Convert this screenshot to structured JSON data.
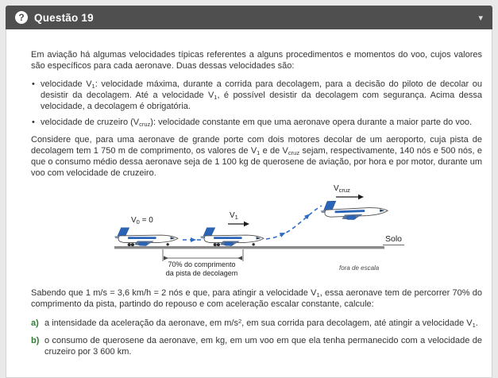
{
  "header": {
    "title": "Questão 19",
    "help_icon_glyph": "?",
    "collapse_icon_glyph": "▾"
  },
  "colors": {
    "header_bg": "#4f4f4f",
    "item_letter_green": "#2e7d32",
    "trajectory_blue": "#2f6bc4",
    "ground_gray": "#8a8a8a"
  },
  "question": {
    "intro": [
      {
        "t": "Em aviação há algumas velocidades típicas referentes a alguns procedimentos e momentos do voo, cujos valores são específicos para cada aeronave. Duas dessas velocidades são:"
      }
    ],
    "bullets": [
      [
        {
          "t": "velocidade V"
        },
        {
          "t": "1",
          "sub": true
        },
        {
          "t": ": velocidade máxima, durante a corrida para decolagem, para a decisão do piloto de decolar ou desistir da decolagem. Até a velocidade V"
        },
        {
          "t": "1",
          "sub": true
        },
        {
          "t": ", é possível desistir da decolagem com segurança. Acima dessa velocidade, a decolagem é obrigatória."
        }
      ],
      [
        {
          "t": "velocidade de cruzeiro (V"
        },
        {
          "t": "cruz",
          "sub": true
        },
        {
          "t": "): velocidade constante em que uma aeronave opera durante a maior parte do voo."
        }
      ]
    ],
    "considere": [
      {
        "t": "Considere que, para uma aeronave de grande porte com dois motores decolar de um aeroporto, cuja pista de decolagem tem 1 750 m de comprimento, os valores de V"
      },
      {
        "t": "1",
        "sub": true
      },
      {
        "t": " e de V"
      },
      {
        "t": "cruz",
        "sub": true
      },
      {
        "t": " sejam, respectivamente, 140 nós e 500 nós, e que o consumo médio dessa aeronave seja de 1 100 kg de querosene de aviação, por hora e por motor, durante um voo com velocidade de cruzeiro."
      }
    ],
    "sabendo": [
      {
        "t": "Sabendo que 1 m/s = 3,6 km/h = 2 nós e que, para atingir a velocidade V"
      },
      {
        "t": "1",
        "sub": true
      },
      {
        "t": ", essa aeronave tem de percorrer 70% do comprimento da pista, partindo do repouso e com aceleração escalar constante, calcule:"
      }
    ],
    "items": [
      {
        "label": "a)",
        "text": [
          {
            "t": "a intensidade da aceleração da aeronave, em m/s"
          },
          {
            "t": "2",
            "sup": true
          },
          {
            "t": ", em sua corrida para decolagem, até atingir a velocidade V"
          },
          {
            "t": "1",
            "sub": true
          },
          {
            "t": "."
          }
        ]
      },
      {
        "label": "b)",
        "text": [
          {
            "t": "o consumo de querosene da aeronave, em kg, em um voo em que ela tenha permanecido com a velocidade de cruzeiro por 3 600 km."
          }
        ]
      }
    ]
  },
  "diagram": {
    "v0_label": [
      {
        "t": "V"
      },
      {
        "t": "0",
        "sub": true
      },
      {
        "t": " = 0"
      }
    ],
    "v1_label": [
      {
        "t": "V"
      },
      {
        "t": "1",
        "sub": true
      }
    ],
    "vcruz_label": [
      {
        "t": "V"
      },
      {
        "t": "cruz",
        "sub": true
      }
    ],
    "solo_label": "Solo",
    "bracket_line1": "70% do comprimento",
    "bracket_line2": "da pista de decolagem",
    "scale_note": "fora de escala"
  }
}
